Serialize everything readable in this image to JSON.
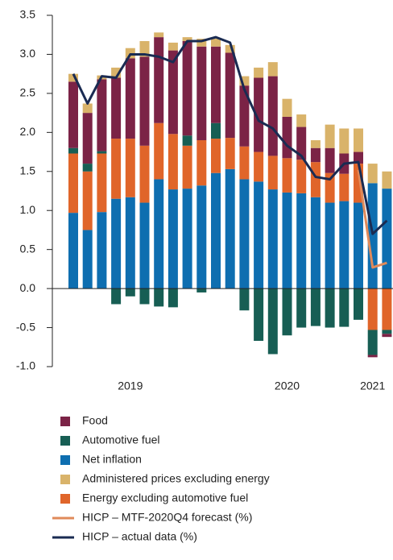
{
  "chart_data": {
    "type": "bar",
    "categories": [
      null,
      null,
      null,
      null,
      "2019",
      null,
      null,
      null,
      null,
      null,
      null,
      null,
      null,
      null,
      null,
      "2020",
      null,
      null,
      null,
      null,
      null,
      "2021",
      null
    ],
    "series": [
      {
        "name": "Food",
        "color": "#7b2346",
        "values": [
          0.85,
          0.65,
          0.92,
          0.78,
          1.03,
          1.14,
          1.1,
          1.07,
          1.21,
          1.2,
          0.98,
          1.09,
          0.78,
          0.95,
          1.02,
          0.53,
          0.42,
          0.18,
          0.32,
          0.26,
          0.15,
          -0.03,
          -0.04
        ]
      },
      {
        "name": "Automotive fuel",
        "color": "#175e54",
        "values": [
          0.07,
          0.1,
          0.03,
          -0.2,
          -0.1,
          -0.2,
          -0.23,
          -0.24,
          0.13,
          -0.05,
          0.2,
          0,
          -0.28,
          -0.67,
          -0.84,
          -0.6,
          -0.5,
          -0.48,
          -0.5,
          -0.49,
          -0.4,
          -0.32,
          -0.05
        ]
      },
      {
        "name": "Net inflation",
        "color": "#0e6eb0",
        "values": [
          0.97,
          0.75,
          0.98,
          1.15,
          1.17,
          1.1,
          1.4,
          1.27,
          1.28,
          1.32,
          1.48,
          1.53,
          1.4,
          1.37,
          1.27,
          1.23,
          1.22,
          1.17,
          1.1,
          1.12,
          1.1,
          1.35,
          1.28
        ]
      },
      {
        "name": "Administered prices excluding energy",
        "color": "#d9b36a",
        "values": [
          0.1,
          0.12,
          0.05,
          0.13,
          0.13,
          0.2,
          0.06,
          0.1,
          0.05,
          0.1,
          0.1,
          0.1,
          0.12,
          0.13,
          0.18,
          0.23,
          0.16,
          0.1,
          0.3,
          0.32,
          0.3,
          0.25,
          0.22
        ]
      },
      {
        "name": "Energy excluding automotive fuel",
        "color": "#e0652a",
        "values": [
          0.76,
          0.75,
          0.75,
          0.77,
          0.75,
          0.73,
          0.72,
          0.71,
          0.55,
          0.58,
          0.44,
          0.4,
          0.42,
          0.38,
          0.43,
          0.44,
          0.43,
          0.45,
          0.38,
          0.35,
          0.5,
          -0.53,
          -0.53
        ]
      },
      {
        "name": "HICP – MTF-2020Q4 forecast (%)",
        "type": "line",
        "color": "#e08a5a",
        "values": [
          null,
          null,
          null,
          null,
          null,
          null,
          null,
          null,
          null,
          null,
          null,
          null,
          null,
          null,
          null,
          null,
          null,
          null,
          null,
          null,
          1.52,
          0.27,
          0.33
        ]
      },
      {
        "name": "HICP – actual data (%)",
        "type": "line",
        "color": "#1a2b52",
        "values": [
          2.75,
          2.37,
          2.72,
          2.7,
          3.0,
          3.0,
          2.97,
          2.9,
          3.17,
          3.17,
          3.22,
          3.15,
          2.55,
          2.15,
          2.05,
          1.83,
          1.7,
          1.43,
          1.4,
          1.6,
          1.62,
          0.7,
          0.87
        ]
      }
    ],
    "ylim": [
      -1.0,
      3.5
    ],
    "yticks": [
      {
        "value": 3.5,
        "label": "3.5"
      },
      {
        "value": 3,
        "label": "3.0"
      },
      2.5,
      {
        "value": 2,
        "label": "2.0"
      },
      1.5,
      {
        "value": 1,
        "label": "1.0"
      },
      0.5,
      {
        "value": 0,
        "label": "0.0"
      },
      -0.5,
      {
        "value": -1,
        "label": "-1.0"
      }
    ]
  }
}
